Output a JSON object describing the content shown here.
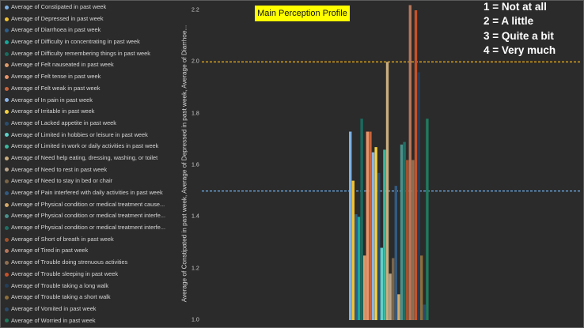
{
  "chart_data": {
    "type": "bar",
    "title": "Main Perception Profile",
    "ylabel": "Average of Constipated in past week, Average of Depressed in past week, Average of Diarrhoe...",
    "ylim": [
      1.0,
      2.2
    ],
    "yticks": [
      "1.0",
      "1.2",
      "1.4",
      "1.6",
      "1.8",
      "2.0",
      "2.2"
    ],
    "grid": false,
    "legend_position": "left",
    "reference_lines": [
      {
        "value": 2.0,
        "color": "#e6a817",
        "style": "dashed"
      },
      {
        "value": 1.5,
        "color": "#6aa6e0",
        "style": "dashed"
      }
    ],
    "series": [
      {
        "name": "Average of Constipated in past week",
        "color": "#7bb0e6",
        "value": 1.73
      },
      {
        "name": "Average of Depressed in past week",
        "color": "#f2c12e",
        "value": 1.54
      },
      {
        "name": "Average of Diarrhoea in past week",
        "color": "#2e5f8a",
        "value": 1.41
      },
      {
        "name": "Average of Difficulty in concentrating in past week",
        "color": "#17a89a",
        "value": 1.4
      },
      {
        "name": "Average of Difficulty remembering things in past week",
        "color": "#1a6b5e",
        "value": 1.78
      },
      {
        "name": "Average of Felt nauseated in past week",
        "color": "#d99a6c",
        "value": 1.25
      },
      {
        "name": "Average of Felt tense in past week",
        "color": "#e8956a",
        "value": 1.73
      },
      {
        "name": "Average of Felt weak in past week",
        "color": "#c8643c",
        "value": 1.73
      },
      {
        "name": "Average of In pain in past week",
        "color": "#8ab4e8",
        "value": 1.65
      },
      {
        "name": "Average of Irritable in past week",
        "color": "#f4d03f",
        "value": 1.67
      },
      {
        "name": "Average of Lacked appetite in past week",
        "color": "#2a4d6e",
        "value": 1.57
      },
      {
        "name": "Average of Limited in hobbies or leisure in past week",
        "color": "#5ed0c8",
        "value": 1.28
      },
      {
        "name": "Average of Limited in work or daily activities in past week",
        "color": "#3cb89f",
        "value": 1.66
      },
      {
        "name": "Average of Need help eating, dressing, washing, or toilet",
        "color": "#c9ad7e",
        "value": 2.0
      },
      {
        "name": "Average of Need to rest in past week",
        "color": "#b8a38a",
        "value": 1.18
      },
      {
        "name": "Average of Need to stay in bed or chair",
        "color": "#7a6548",
        "value": 1.24
      },
      {
        "name": "Average of Pain interfered with daily activities in past week",
        "color": "#325a80",
        "value": 1.52
      },
      {
        "name": "Average of Physical condition or medical treatment cause...",
        "color": "#d4a96a",
        "value": 1.1
      },
      {
        "name": "Average of Physical condition or medical treatment interfe...",
        "color": "#4a8f8a",
        "value": 1.68
      },
      {
        "name": "Average of Physical condition or medical treatment interfe...",
        "color": "#1f6e64",
        "value": 1.69
      },
      {
        "name": "Average of Short of breath in past week",
        "color": "#a0522d",
        "value": 1.62
      },
      {
        "name": "Average of Tired in past week",
        "color": "#b5765a",
        "value": 2.22
      },
      {
        "name": "Average of Trouble doing strenuous activities",
        "color": "#8f6f52",
        "value": 1.62
      },
      {
        "name": "Average of Trouble sleeping in past week",
        "color": "#c6522a",
        "value": 2.2
      },
      {
        "name": "Average of Trouble taking a long walk",
        "color": "#233f5a",
        "value": 1.96
      },
      {
        "name": "Average of Trouble taking a short walk",
        "color": "#8c6e3c",
        "value": 1.25
      },
      {
        "name": "Average of Vomited in past week",
        "color": "#2c4a6a",
        "value": 1.06
      },
      {
        "name": "Average of Worried in past week",
        "color": "#1f7a5e",
        "value": 1.78
      }
    ]
  },
  "scale_notes": [
    "1 = Not at all",
    "2 = A little",
    "3 = Quite a bit",
    "4 = Very much"
  ]
}
